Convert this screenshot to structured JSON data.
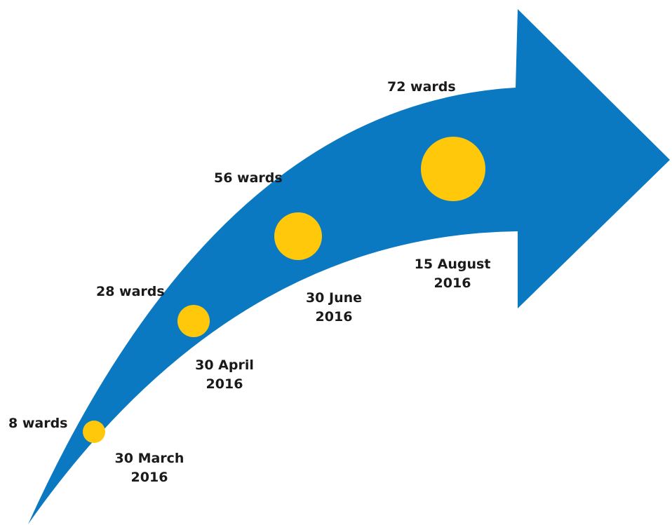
{
  "colors": {
    "arrow": "#0b79c1",
    "milestone": "#ffc80a",
    "text": "#1a1a1a"
  },
  "milestones": [
    {
      "count": "8 wards",
      "date_line1": "30 March",
      "date_line2": "2016"
    },
    {
      "count": "28 wards",
      "date_line1": "30 April",
      "date_line2": "2016"
    },
    {
      "count": "56 wards",
      "date_line1": "30 June",
      "date_line2": "2016"
    },
    {
      "count": "72 wards",
      "date_line1": "15 August",
      "date_line2": "2016"
    }
  ]
}
